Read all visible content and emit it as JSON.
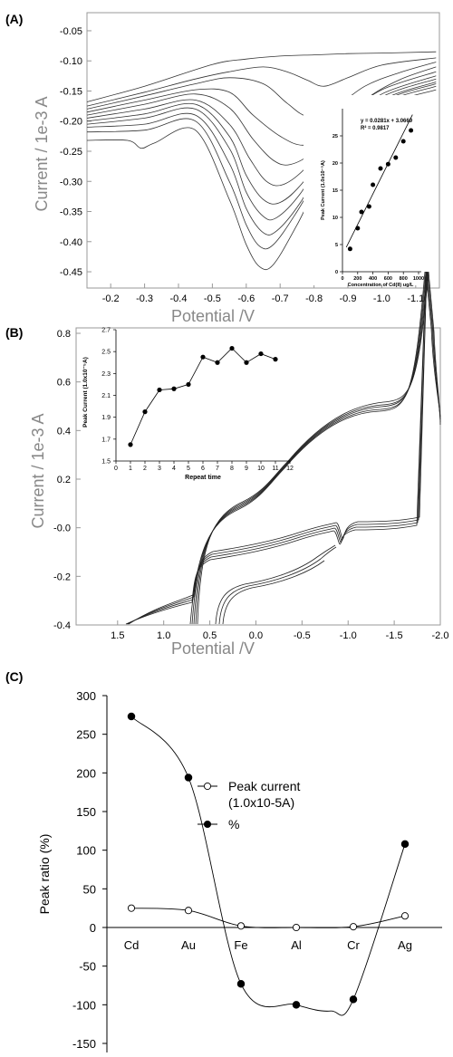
{
  "panels": {
    "a": {
      "label": "(A)"
    },
    "b": {
      "label": "(B)"
    },
    "c": {
      "label": "(C)"
    }
  },
  "chart_data": [
    {
      "id": "A",
      "type": "line",
      "xlabel": "Potential /V",
      "ylabel": "Current / 1e-3 A",
      "x_ticks": [
        "-0.2",
        "-0.3",
        "-0.4",
        "-0.5",
        "-0.6",
        "-0.7",
        "-0.8",
        "-0.9",
        "-1.0",
        "-1.1"
      ],
      "y_ticks": [
        "-0.05",
        "-0.10",
        "-0.15",
        "-0.20",
        "-0.25",
        "-0.30",
        "-0.35",
        "-0.40",
        "-0.45"
      ],
      "xlim": [
        -0.13,
        -1.17
      ],
      "ylim": [
        -0.477,
        -0.02
      ],
      "series": [
        {
          "values": [
            [
              -0.13,
              -0.168
            ],
            [
              -0.3,
              -0.142
            ],
            [
              -0.5,
              -0.106
            ],
            [
              -0.6,
              -0.097
            ],
            [
              -0.7,
              -0.092
            ],
            [
              -0.8,
              -0.09
            ],
            [
              -0.9,
              -0.088
            ],
            [
              -1.0,
              -0.087
            ],
            [
              -1.16,
              -0.085
            ]
          ]
        },
        {
          "values": [
            [
              -0.13,
              -0.175
            ],
            [
              -0.3,
              -0.152
            ],
            [
              -0.45,
              -0.13
            ],
            [
              -0.55,
              -0.118
            ],
            [
              -0.65,
              -0.11
            ],
            [
              -0.72,
              -0.118
            ],
            [
              -0.78,
              -0.132
            ],
            [
              -0.83,
              -0.142
            ],
            [
              -0.9,
              -0.128
            ],
            [
              -1.0,
              -0.107
            ],
            [
              -1.16,
              -0.095
            ]
          ]
        },
        {
          "values": [
            [
              -0.13,
              -0.18
            ],
            [
              -0.3,
              -0.158
            ],
            [
              -0.45,
              -0.138
            ],
            [
              -0.55,
              -0.128
            ],
            [
              -0.65,
              -0.138
            ],
            [
              -0.72,
              -0.17
            ],
            [
              -0.78,
              -0.192
            ],
            [
              -0.85,
              -0.182
            ],
            [
              -0.95,
              -0.142
            ],
            [
              -1.05,
              -0.12
            ],
            [
              -1.16,
              -0.102
            ]
          ]
        },
        {
          "values": [
            [
              -0.13,
              -0.185
            ],
            [
              -0.3,
              -0.165
            ],
            [
              -0.45,
              -0.148
            ],
            [
              -0.55,
              -0.152
            ],
            [
              -0.62,
              -0.19
            ],
            [
              -0.7,
              -0.225
            ],
            [
              -0.77,
              -0.24
            ],
            [
              -0.85,
              -0.222
            ],
            [
              -0.95,
              -0.165
            ],
            [
              -1.05,
              -0.132
            ],
            [
              -1.16,
              -0.11
            ]
          ]
        },
        {
          "values": [
            [
              -0.13,
              -0.19
            ],
            [
              -0.3,
              -0.172
            ],
            [
              -0.45,
              -0.155
            ],
            [
              -0.55,
              -0.178
            ],
            [
              -0.62,
              -0.23
            ],
            [
              -0.68,
              -0.265
            ],
            [
              -0.73,
              -0.272
            ],
            [
              -0.8,
              -0.25
            ],
            [
              -0.9,
              -0.19
            ],
            [
              -1.0,
              -0.148
            ],
            [
              -1.16,
              -0.118
            ]
          ]
        },
        {
          "values": [
            [
              -0.13,
              -0.195
            ],
            [
              -0.3,
              -0.18
            ],
            [
              -0.45,
              -0.165
            ],
            [
              -0.55,
              -0.205
            ],
            [
              -0.61,
              -0.262
            ],
            [
              -0.66,
              -0.3
            ],
            [
              -0.71,
              -0.305
            ],
            [
              -0.78,
              -0.275
            ],
            [
              -0.88,
              -0.205
            ],
            [
              -1.0,
              -0.155
            ],
            [
              -1.16,
              -0.125
            ]
          ]
        },
        {
          "values": [
            [
              -0.13,
              -0.2
            ],
            [
              -0.3,
              -0.188
            ],
            [
              -0.45,
              -0.172
            ],
            [
              -0.55,
              -0.225
            ],
            [
              -0.6,
              -0.29
            ],
            [
              -0.65,
              -0.33
            ],
            [
              -0.7,
              -0.335
            ],
            [
              -0.77,
              -0.3
            ],
            [
              -0.88,
              -0.215
            ],
            [
              -1.0,
              -0.16
            ],
            [
              -1.16,
              -0.13
            ]
          ]
        },
        {
          "values": [
            [
              -0.13,
              -0.205
            ],
            [
              -0.3,
              -0.195
            ],
            [
              -0.45,
              -0.18
            ],
            [
              -0.55,
              -0.245
            ],
            [
              -0.6,
              -0.318
            ],
            [
              -0.65,
              -0.358
            ],
            [
              -0.69,
              -0.36
            ],
            [
              -0.76,
              -0.32
            ],
            [
              -0.87,
              -0.225
            ],
            [
              -1.0,
              -0.165
            ],
            [
              -1.16,
              -0.135
            ]
          ]
        },
        {
          "values": [
            [
              -0.13,
              -0.21
            ],
            [
              -0.3,
              -0.205
            ],
            [
              -0.45,
              -0.19
            ],
            [
              -0.55,
              -0.27
            ],
            [
              -0.6,
              -0.345
            ],
            [
              -0.65,
              -0.385
            ],
            [
              -0.69,
              -0.382
            ],
            [
              -0.76,
              -0.335
            ],
            [
              -0.87,
              -0.232
            ],
            [
              -1.0,
              -0.168
            ],
            [
              -1.16,
              -0.138
            ]
          ]
        },
        {
          "values": [
            [
              -0.13,
              -0.218
            ],
            [
              -0.3,
              -0.215
            ],
            [
              -0.45,
              -0.2
            ],
            [
              -0.55,
              -0.3
            ],
            [
              -0.6,
              -0.372
            ],
            [
              -0.64,
              -0.408
            ],
            [
              -0.68,
              -0.405
            ],
            [
              -0.75,
              -0.35
            ],
            [
              -0.87,
              -0.24
            ],
            [
              -1.0,
              -0.172
            ],
            [
              -1.16,
              -0.142
            ]
          ]
        },
        {
          "values": [
            [
              -0.13,
              -0.232
            ],
            [
              -0.25,
              -0.232
            ],
            [
              -0.29,
              -0.245
            ],
            [
              -0.33,
              -0.236
            ],
            [
              -0.45,
              -0.215
            ],
            [
              -0.55,
              -0.33
            ],
            [
              -0.6,
              -0.405
            ],
            [
              -0.64,
              -0.442
            ],
            [
              -0.68,
              -0.438
            ],
            [
              -0.75,
              -0.372
            ],
            [
              -0.86,
              -0.255
            ],
            [
              -1.0,
              -0.178
            ],
            [
              -1.16,
              -0.148
            ]
          ]
        }
      ],
      "inset": {
        "type": "scatter",
        "equation": "y = 0.0281x + 3.0669",
        "r2": "R² = 0.9817",
        "xlabel": "Concentration of Cd(II) ug/L",
        "ylabel": "Peak Current (1.0x10⁻⁵A)",
        "x_ticks": [
          "0",
          "200",
          "400",
          "600",
          "800",
          "1000"
        ],
        "y_ticks": [
          "0",
          "5",
          "10",
          "15",
          "20",
          "25"
        ],
        "xlim": [
          0,
          1000
        ],
        "ylim": [
          0,
          30
        ],
        "points": [
          [
            100,
            4.2
          ],
          [
            200,
            8
          ],
          [
            250,
            11
          ],
          [
            350,
            12
          ],
          [
            400,
            16
          ],
          [
            500,
            19
          ],
          [
            600,
            19.8
          ],
          [
            700,
            21
          ],
          [
            800,
            24
          ],
          [
            900,
            26
          ]
        ],
        "fit": [
          [
            50,
            4.5
          ],
          [
            920,
            28.9
          ]
        ]
      }
    },
    {
      "id": "B",
      "type": "line",
      "xlabel": "Potential /V",
      "ylabel": "Current / 1e-3 A",
      "x_ticks": [
        "1.5",
        "1.0",
        "0.5",
        "0.0",
        "-0.5",
        "-1.0",
        "-1.5",
        "-2.0"
      ],
      "y_ticks": [
        "0.8",
        "0.6",
        "0.4",
        "0.2",
        "-0.0",
        "-0.2",
        "-0.4"
      ],
      "xlim": [
        1.95,
        -2.0
      ],
      "ylim": [
        -0.4,
        0.8
      ],
      "inset": {
        "type": "line",
        "xlabel": "Repeat time",
        "ylabel": "Peak Current (1.0x10⁻⁵A)",
        "x_ticks": [
          "0",
          "1",
          "2",
          "3",
          "4",
          "5",
          "6",
          "7",
          "8",
          "9",
          "10",
          "11",
          "12"
        ],
        "y_ticks": [
          "1.5",
          "1.7",
          "1.9",
          "2.1",
          "2.3",
          "2.5",
          "2.7"
        ],
        "xlim": [
          0,
          12
        ],
        "ylim": [
          1.5,
          2.7
        ],
        "points": [
          [
            1,
            1.65
          ],
          [
            2,
            1.95
          ],
          [
            3,
            2.15
          ],
          [
            4,
            2.16
          ],
          [
            5,
            2.2
          ],
          [
            6,
            2.45
          ],
          [
            7,
            2.4
          ],
          [
            8,
            2.53
          ],
          [
            9,
            2.4
          ],
          [
            10,
            2.48
          ],
          [
            11,
            2.43
          ]
        ]
      }
    },
    {
      "id": "C",
      "type": "line",
      "ylabel": "Peak ratio (%)",
      "categories": [
        "Cd",
        "Au",
        "Fe",
        "Al",
        "Cr",
        "Ag"
      ],
      "y_ticks": [
        "300",
        "250",
        "200",
        "150",
        "100",
        "50",
        "0",
        "-50",
        "-100",
        "-150"
      ],
      "ylim": [
        -150,
        300
      ],
      "series": [
        {
          "name": "Peak current",
          "name2": "(1.0x10-5A)",
          "values": [
            25,
            22,
            2,
            0,
            1,
            15
          ]
        },
        {
          "name": "%",
          "values": [
            273,
            194,
            -73,
            -100,
            -93,
            108
          ]
        }
      ]
    }
  ]
}
